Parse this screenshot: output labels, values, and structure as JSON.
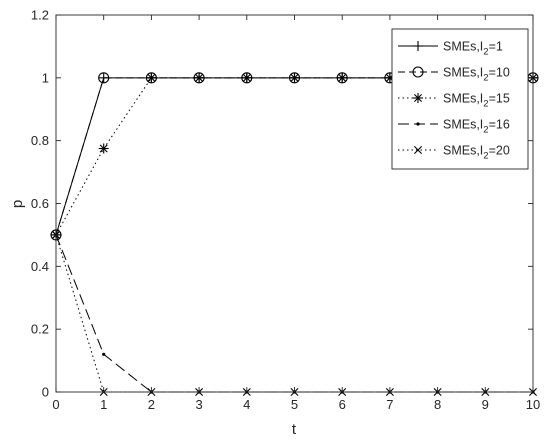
{
  "chart_data": {
    "type": "line",
    "title": "",
    "xlabel": "t",
    "ylabel": "p",
    "xlim": [
      0,
      10
    ],
    "ylim": [
      0,
      1.2
    ],
    "xticks": [
      0,
      1,
      2,
      3,
      4,
      5,
      6,
      7,
      8,
      9,
      10
    ],
    "xtick_labels": [
      "0",
      "1",
      "2",
      "3",
      "4",
      "5",
      "6",
      "7",
      "8",
      "9",
      "10"
    ],
    "yticks": [
      0,
      0.2,
      0.4,
      0.6,
      0.8,
      1,
      1.2
    ],
    "ytick_labels": [
      "0",
      "0.2",
      "0.4",
      "0.6",
      "0.8",
      "1",
      "1.2"
    ],
    "grid": false,
    "legend_position": "top-right",
    "x": [
      0,
      1,
      2,
      3,
      4,
      5,
      6,
      7,
      8,
      9,
      10
    ],
    "series": [
      {
        "name": "SMEs,I2=1",
        "name_prefix": "SMEs,I",
        "name_sub": "2",
        "name_suffix": "=1",
        "line_style": "solid",
        "marker": "plus",
        "color": "#000000",
        "values": [
          0.5,
          1,
          1,
          1,
          1,
          1,
          1,
          1,
          1,
          1,
          1
        ]
      },
      {
        "name": "SMEs,I2=10",
        "name_prefix": "SMEs,I",
        "name_sub": "2",
        "name_suffix": "=10",
        "line_style": "dashed",
        "marker": "circle",
        "color": "#000000",
        "values": [
          0.5,
          1,
          1,
          1,
          1,
          1,
          1,
          1,
          1,
          1,
          1
        ]
      },
      {
        "name": "SMEs,I2=15",
        "name_prefix": "SMEs,I",
        "name_sub": "2",
        "name_suffix": "=15",
        "line_style": "dotted",
        "marker": "asterisk",
        "color": "#000000",
        "values": [
          0.5,
          0.775,
          1,
          1,
          1,
          1,
          1,
          1,
          1,
          1,
          1
        ]
      },
      {
        "name": "SMEs,I2=16",
        "name_prefix": "SMEs,I",
        "name_sub": "2",
        "name_suffix": "=16",
        "line_style": "longdash",
        "marker": "point",
        "color": "#000000",
        "values": [
          0.5,
          0.12,
          0,
          0,
          0,
          0,
          0,
          0,
          0,
          0,
          0
        ]
      },
      {
        "name": "SMEs,I2=20",
        "name_prefix": "SMEs,I",
        "name_sub": "2",
        "name_suffix": "=20",
        "line_style": "dotted",
        "marker": "x",
        "color": "#000000",
        "values": [
          0.5,
          0,
          0,
          0,
          0,
          0,
          0,
          0,
          0,
          0,
          0
        ]
      }
    ]
  }
}
